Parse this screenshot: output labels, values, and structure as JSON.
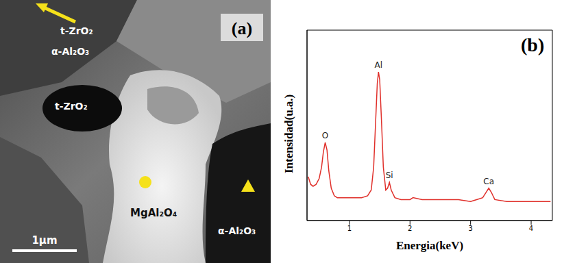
{
  "image_panel": {
    "label": "(a)",
    "scale_bar": "1μm",
    "phases": [
      "t-ZrO₂",
      "α-Al₂O₃",
      "t-ZrO₂",
      "MgAl₂O₄",
      "α-Al₂O₃"
    ]
  },
  "chart_data": {
    "type": "line",
    "label": "(b)",
    "x_label": "Energia(keV)",
    "y_label": "Intensidad(u.a.)",
    "xlim": [
      0.3,
      4.35
    ],
    "xticks": [
      1,
      2,
      3,
      4
    ],
    "ylim": [
      0,
      100
    ],
    "tick_labels": "x",
    "grid": false,
    "series": [
      {
        "color": "#e0302b",
        "x": [
          0.32,
          0.36,
          0.4,
          0.45,
          0.5,
          0.54,
          0.57,
          0.6,
          0.63,
          0.66,
          0.7,
          0.75,
          0.8,
          0.9,
          1.0,
          1.1,
          1.2,
          1.3,
          1.36,
          1.4,
          1.43,
          1.46,
          1.48,
          1.5,
          1.53,
          1.56,
          1.6,
          1.63,
          1.66,
          1.69,
          1.75,
          1.85,
          2.0,
          2.05,
          2.2,
          2.4,
          2.6,
          2.8,
          3.0,
          3.1,
          3.2,
          3.26,
          3.3,
          3.34,
          3.4,
          3.6,
          3.8,
          4.0,
          4.2,
          4.32
        ],
        "values": [
          23,
          19,
          18,
          19,
          22,
          28,
          36,
          41,
          37,
          26,
          17,
          13,
          12,
          12,
          12,
          12,
          12,
          13,
          16,
          28,
          50,
          72,
          78,
          74,
          52,
          28,
          16,
          17,
          20,
          16,
          12,
          11,
          11,
          12,
          11,
          11,
          11,
          11,
          10,
          11,
          12,
          15,
          17,
          15,
          11,
          10,
          10,
          10,
          10,
          10
        ]
      }
    ],
    "annotations": [
      {
        "text": "O",
        "x": 0.6,
        "y": 41
      },
      {
        "text": "Al",
        "x": 1.48,
        "y": 78
      },
      {
        "text": "Si",
        "x": 1.66,
        "y": 20
      },
      {
        "text": "Ca",
        "x": 3.3,
        "y": 17
      }
    ]
  }
}
